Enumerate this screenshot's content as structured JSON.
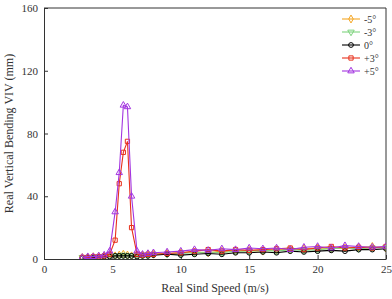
{
  "chart_data": {
    "type": "line",
    "x_label": "Real Sind Speed (m/s)",
    "y_label": "Real Vertical Bending VIV (mm)",
    "x": [
      2.8,
      3.2,
      3.6,
      4.0,
      4.4,
      4.8,
      5.2,
      5.5,
      5.8,
      6.1,
      6.4,
      6.8,
      7.2,
      7.6,
      8.0,
      9,
      10,
      11,
      12,
      13,
      14,
      15,
      16,
      17,
      18,
      19,
      20,
      21,
      22,
      23,
      24,
      25
    ],
    "series": [
      {
        "name": "-5°",
        "color": "#f5a623",
        "marker": "diamond",
        "values": [
          1,
          1,
          1.5,
          1.5,
          2,
          2,
          2,
          2.5,
          3,
          2.5,
          2,
          2,
          2.5,
          3,
          3,
          3.5,
          4,
          4.5,
          4,
          5,
          5,
          5.5,
          5,
          6,
          6,
          6.5,
          7,
          6.5,
          7,
          7.5,
          8,
          7
        ]
      },
      {
        "name": "-3°",
        "color": "#7fd37f",
        "marker": "triangle-down",
        "values": [
          1,
          1,
          1,
          1.5,
          1.5,
          2,
          2,
          2,
          2.5,
          2,
          2,
          2,
          2.5,
          2.5,
          3,
          3,
          3.5,
          4,
          4.5,
          4,
          5,
          5,
          5.5,
          5,
          6,
          5.5,
          6,
          6.5,
          7,
          6.5,
          7,
          7.5
        ]
      },
      {
        "name": "0°",
        "color": "#000000",
        "marker": "circle",
        "values": [
          0.5,
          1,
          1,
          1,
          1.5,
          1.5,
          2,
          2,
          2,
          2,
          2,
          1.5,
          2,
          2,
          2.5,
          3,
          2.5,
          3,
          3.5,
          3,
          4,
          4,
          4.5,
          4,
          5,
          4.5,
          5,
          5.5,
          5,
          6,
          6,
          6.5
        ]
      },
      {
        "name": "+3°",
        "color": "#e8301c",
        "marker": "square",
        "values": [
          1,
          1,
          1.5,
          1.5,
          2,
          3,
          12,
          48,
          68,
          75,
          20,
          3,
          2.5,
          3,
          3,
          3.5,
          4,
          5,
          6,
          5,
          6,
          5.5,
          6,
          6.5,
          7,
          6,
          7,
          8,
          7,
          7.5,
          7,
          8
        ]
      },
      {
        "name": "+5°",
        "color": "#a335e0",
        "marker": "triangle",
        "values": [
          1,
          1.5,
          1.5,
          2,
          2.5,
          5,
          30,
          55,
          98,
          97,
          40,
          5,
          3,
          3.5,
          4,
          4.5,
          5,
          6,
          5.5,
          6.5,
          6,
          7,
          6.5,
          7,
          6,
          7.5,
          8,
          7,
          8.5,
          8,
          7.5,
          8
        ]
      }
    ],
    "xlim": [
      0,
      25
    ],
    "xticks": [
      0,
      5,
      10,
      15,
      20,
      25
    ],
    "ylim": [
      0,
      160
    ],
    "yticks": [
      0,
      40,
      80,
      120,
      160
    ],
    "legend": "upper right"
  }
}
